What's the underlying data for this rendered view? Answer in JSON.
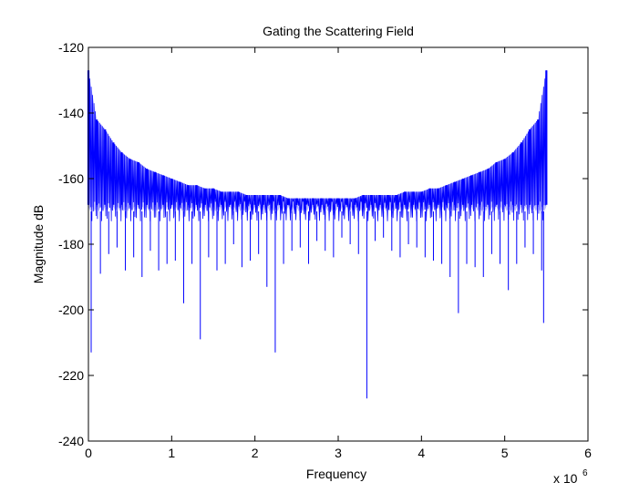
{
  "chart_data": {
    "type": "line",
    "title": "Gating the Scattering Field",
    "xlabel": "Frequency",
    "ylabel": "Magnitude dB",
    "x_multiplier_label": "x 10",
    "x_multiplier_exponent": "6",
    "xlim": [
      0,
      6
    ],
    "ylim": [
      -240,
      -120
    ],
    "x_ticks": [
      0,
      1,
      2,
      3,
      4,
      5,
      6
    ],
    "y_ticks": [
      -240,
      -220,
      -200,
      -180,
      -160,
      -140,
      -120
    ],
    "grid": false,
    "line_color": "#0000ff",
    "series": [
      {
        "x": [
          0.0,
          0.1,
          0.2,
          0.3,
          0.4,
          0.5,
          0.6,
          0.7,
          0.8,
          0.9,
          1.0,
          1.1,
          1.2,
          1.3,
          1.4,
          1.5,
          1.6,
          1.7,
          1.8,
          1.9,
          2.0,
          2.1,
          2.2,
          2.3,
          2.4,
          2.5,
          2.6,
          2.7,
          2.8,
          2.9,
          3.0,
          3.1,
          3.2,
          3.3,
          3.4,
          3.5,
          3.6,
          3.7,
          3.8,
          3.9,
          4.0,
          4.1,
          4.2,
          4.3,
          4.4,
          4.5,
          4.6,
          4.7,
          4.8,
          4.9,
          5.0,
          5.1,
          5.2,
          5.3,
          5.4,
          5.5
        ],
        "peak_dB": [
          -127,
          -142,
          -145,
          -149,
          -152,
          -154,
          -155,
          -157,
          -158,
          -159,
          -160,
          -161,
          -162,
          -162,
          -163,
          -163,
          -164,
          -164,
          -164,
          -165,
          -165,
          -165,
          -165,
          -165,
          -166,
          -166,
          -166,
          -166,
          -166,
          -166,
          -166,
          -166,
          -166,
          -165,
          -165,
          -165,
          -165,
          -165,
          -164,
          -164,
          -164,
          -163,
          -163,
          -162,
          -161,
          -160,
          -159,
          -158,
          -157,
          -155,
          -154,
          -152,
          -149,
          -145,
          -142,
          -127
        ],
        "notch_dB": [
          -213,
          -189,
          -183,
          -181,
          -188,
          -184,
          -190,
          -182,
          -188,
          -186,
          -185,
          -198,
          -186,
          -209,
          -184,
          -188,
          -186,
          -180,
          -187,
          -185,
          -183,
          -193,
          -213,
          -186,
          -182,
          -181,
          -186,
          -179,
          -182,
          -184,
          -178,
          -180,
          -183,
          -227,
          -179,
          -178,
          -182,
          -184,
          -180,
          -181,
          -184,
          -185,
          -186,
          -190,
          -201,
          -186,
          -187,
          -190,
          -183,
          -186,
          -194,
          -186,
          -181,
          -183,
          -188,
          -204
        ]
      }
    ]
  }
}
